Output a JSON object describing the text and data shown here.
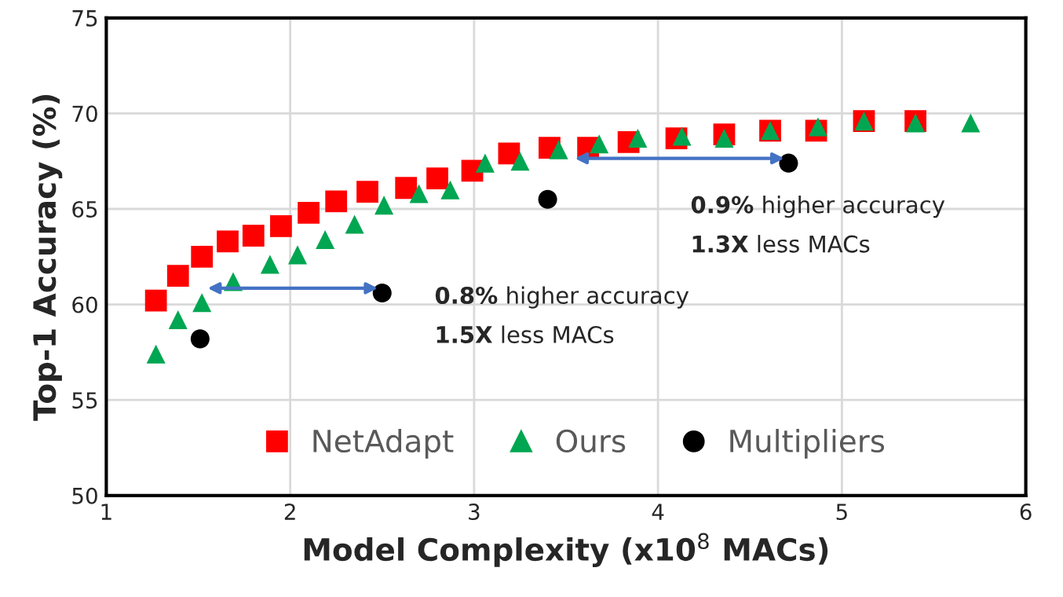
{
  "chart_data": {
    "type": "scatter",
    "xlabel": "Model Complexity (x10$^{8}$ MACs)",
    "ylabel": "Top-1 Accuracy (%)",
    "xlim": [
      1,
      6
    ],
    "ylim": [
      50,
      75
    ],
    "xticks": [
      1,
      2,
      3,
      4,
      5,
      6
    ],
    "yticks": [
      50,
      55,
      60,
      65,
      70,
      75
    ],
    "grid": true,
    "legend": "bottom",
    "series": [
      {
        "name": "NetAdapt",
        "color": "#ff0000",
        "marker": "square",
        "x": [
          1.27,
          1.39,
          1.52,
          1.66,
          1.8,
          1.95,
          2.1,
          2.25,
          2.42,
          2.63,
          2.8,
          2.99,
          3.19,
          3.41,
          3.62,
          3.84,
          4.1,
          4.36,
          4.61,
          4.86,
          5.12,
          5.4
        ],
        "values": [
          60.2,
          61.5,
          62.5,
          63.3,
          63.6,
          64.1,
          64.8,
          65.4,
          65.9,
          66.1,
          66.6,
          67.0,
          67.9,
          68.2,
          68.2,
          68.5,
          68.7,
          68.9,
          69.1,
          69.1,
          69.6,
          69.6
        ]
      },
      {
        "name": "Ours",
        "color": "#00a651",
        "marker": "triangle",
        "x": [
          1.27,
          1.39,
          1.52,
          1.69,
          1.89,
          2.04,
          2.19,
          2.35,
          2.51,
          2.7,
          2.87,
          3.06,
          3.25,
          3.46,
          3.68,
          3.89,
          4.13,
          4.36,
          4.61,
          4.87,
          5.12,
          5.4,
          5.7
        ],
        "values": [
          57.4,
          59.2,
          60.1,
          61.2,
          62.1,
          62.6,
          63.4,
          64.2,
          65.2,
          65.8,
          66.0,
          67.4,
          67.5,
          68.1,
          68.4,
          68.7,
          68.8,
          68.7,
          69.1,
          69.3,
          69.6,
          69.5,
          69.5
        ]
      },
      {
        "name": "Multipliers",
        "color": "#000000",
        "marker": "circle",
        "x": [
          1.51,
          2.5,
          3.4,
          4.71
        ],
        "values": [
          58.2,
          60.6,
          65.5,
          67.4
        ]
      }
    ],
    "annotations": [
      {
        "text": "0.8% higher accuracy\n1.5X less MACs",
        "x": 2.5,
        "y": 60.6
      },
      {
        "text": "0.9% higher accuracy\n1.3X less MACs",
        "x": 4.71,
        "y": 67.4
      }
    ]
  }
}
